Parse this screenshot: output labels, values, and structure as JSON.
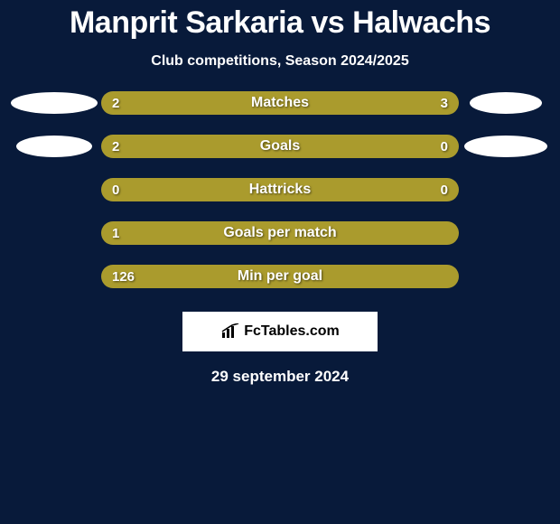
{
  "background_color": "#081a3a",
  "text_color": "#ffffff",
  "title": "Manprit Sarkaria vs Halwachs",
  "title_color": "#ffffff",
  "subtitle": "Club competitions, Season 2024/2025",
  "subtitle_color": "#ffffff",
  "bar_color_left": "#aa9b2d",
  "bar_color_right": "#aa9b2d",
  "bar_track_color": "#081a3a",
  "bar_label_color": "#ffffff",
  "bar_value_color": "#ffffff",
  "avatar_color": "#ffffff",
  "rows": [
    {
      "label": "Matches",
      "left_value": "2",
      "right_value": "3",
      "left_pct": 40,
      "right_pct": 60,
      "show_left_avatar": true,
      "show_right_avatar": true,
      "left_avatar_width": 96,
      "right_avatar_width": 80
    },
    {
      "label": "Goals",
      "left_value": "2",
      "right_value": "0",
      "left_pct": 80,
      "right_pct": 20,
      "show_left_avatar": true,
      "show_right_avatar": true,
      "left_avatar_width": 84,
      "right_avatar_width": 92
    },
    {
      "label": "Hattricks",
      "left_value": "0",
      "right_value": "0",
      "left_pct": 100,
      "right_pct": 0,
      "show_left_avatar": false,
      "show_right_avatar": false
    },
    {
      "label": "Goals per match",
      "left_value": "1",
      "right_value": "",
      "left_pct": 100,
      "right_pct": 0,
      "show_left_avatar": false,
      "show_right_avatar": false
    },
    {
      "label": "Min per goal",
      "left_value": "126",
      "right_value": "",
      "left_pct": 100,
      "right_pct": 0,
      "show_left_avatar": false,
      "show_right_avatar": false
    }
  ],
  "footer": {
    "box_bg": "#ffffff",
    "brand_text": "FcTables.com",
    "brand_color": "#000000",
    "icon_color": "#000000"
  },
  "date_text": "29 september 2024",
  "date_color": "#ffffff"
}
